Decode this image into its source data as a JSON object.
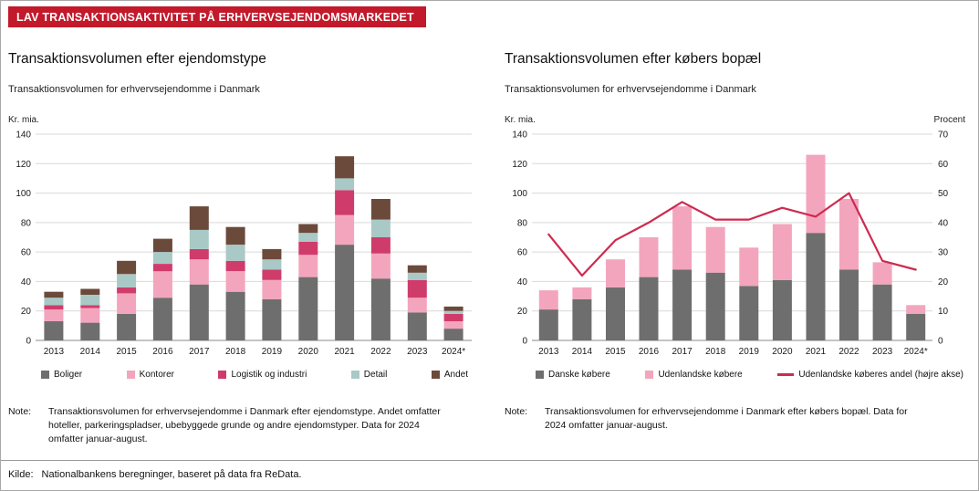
{
  "header": {
    "title": "LAV TRANSAKTIONSAKTIVITET PÅ ERHVERVSEJENDOMSMARKEDET"
  },
  "source": {
    "label": "Kilde:",
    "text": "Nationalbankens beregninger, baseret på data fra ReData."
  },
  "left_panel": {
    "title": "Transaktionsvolumen efter ejendomstype",
    "subtitle": "Transaktionsvolumen for erhvervsejendomme i Danmark",
    "y_unit": "Kr. mia.",
    "note_label": "Note:",
    "note": "Transaktionsvolumen for erhvervsejendomme i Danmark efter ejendomstype. Andet omfatter hoteller, parkeringspladser, ubebyggede grunde og andre ejendomstyper. Data for 2024 omfatter januar-august."
  },
  "right_panel": {
    "title": "Transaktionsvolumen efter købers bopæl",
    "subtitle": "Transaktionsvolumen for erhvervsejendomme i Danmark",
    "y_unit": "Kr. mia.",
    "y_unit_right": "Procent",
    "note_label": "Note:",
    "note": "Transaktionsvolumen for erhvervsejendomme i Danmark efter købers bopæl. Data for 2024 omfatter januar-august."
  },
  "colors": {
    "banner_red": "#c2192b",
    "gray": "#6e6e6e",
    "light_pink": "#f3a5bd",
    "magenta": "#cf3c6c",
    "teal": "#a9c9c6",
    "brown": "#6c4a3b",
    "line_red": "#cc2b50",
    "grid": "#d9d9d9",
    "axis": "#8a8a8a"
  },
  "chart_data": [
    {
      "type": "bar",
      "stacked": true,
      "title": "Transaktionsvolumen efter ejendomstype",
      "subtitle": "Transaktionsvolumen for erhvervsejendomme i Danmark",
      "xlabel": "",
      "ylabel": "Kr. mia.",
      "ylim": [
        0,
        140
      ],
      "ytick_step": 20,
      "grid": true,
      "legend_position": "bottom",
      "categories": [
        "2013",
        "2014",
        "2015",
        "2016",
        "2017",
        "2018",
        "2019",
        "2020",
        "2021",
        "2022",
        "2023",
        "2024*"
      ],
      "series": [
        {
          "name": "Boliger",
          "color": "#6e6e6e",
          "values": [
            13,
            12,
            18,
            29,
            38,
            33,
            28,
            43,
            65,
            42,
            19,
            8
          ]
        },
        {
          "name": "Kontorer",
          "color": "#f3a5bd",
          "values": [
            8,
            10,
            14,
            18,
            17,
            14,
            13,
            15,
            20,
            17,
            10,
            5
          ]
        },
        {
          "name": "Logistik og industri",
          "color": "#cf3c6c",
          "values": [
            3,
            2,
            4,
            5,
            7,
            7,
            7,
            9,
            17,
            11,
            12,
            5
          ]
        },
        {
          "name": "Detail",
          "color": "#a9c9c6",
          "values": [
            5,
            7,
            9,
            8,
            13,
            11,
            7,
            6,
            8,
            12,
            5,
            2
          ]
        },
        {
          "name": "Andet",
          "color": "#6c4a3b",
          "values": [
            4,
            4,
            9,
            9,
            16,
            12,
            7,
            6,
            15,
            14,
            5,
            3
          ]
        }
      ]
    },
    {
      "type": "bar",
      "stacked": true,
      "title": "Transaktionsvolumen efter købers bopæl",
      "subtitle": "Transaktionsvolumen for erhvervsejendomme i Danmark",
      "xlabel": "",
      "ylabel": "Kr. mia.",
      "ylabel_right": "Procent",
      "ylim": [
        0,
        140
      ],
      "ytick_step": 20,
      "right_axis": {
        "max": 70,
        "tick_step": 10
      },
      "grid": true,
      "legend_position": "bottom",
      "categories": [
        "2013",
        "2014",
        "2015",
        "2016",
        "2017",
        "2018",
        "2019",
        "2020",
        "2021",
        "2022",
        "2023",
        "2024*"
      ],
      "series": [
        {
          "name": "Danske købere",
          "color": "#6e6e6e",
          "values": [
            21,
            28,
            36,
            43,
            48,
            46,
            37,
            41,
            73,
            48,
            38,
            18
          ]
        },
        {
          "name": "Udenlandske købere",
          "color": "#f3a5bd",
          "values": [
            13,
            8,
            19,
            27,
            43,
            31,
            26,
            38,
            53,
            48,
            15,
            6
          ]
        }
      ],
      "line": {
        "name": "Udenlandske køberes andel (højre akse)",
        "color": "#cc2b50",
        "axis": "right",
        "values": [
          36,
          22,
          34,
          40,
          47,
          41,
          41,
          45,
          42,
          50,
          27,
          24
        ]
      }
    }
  ]
}
